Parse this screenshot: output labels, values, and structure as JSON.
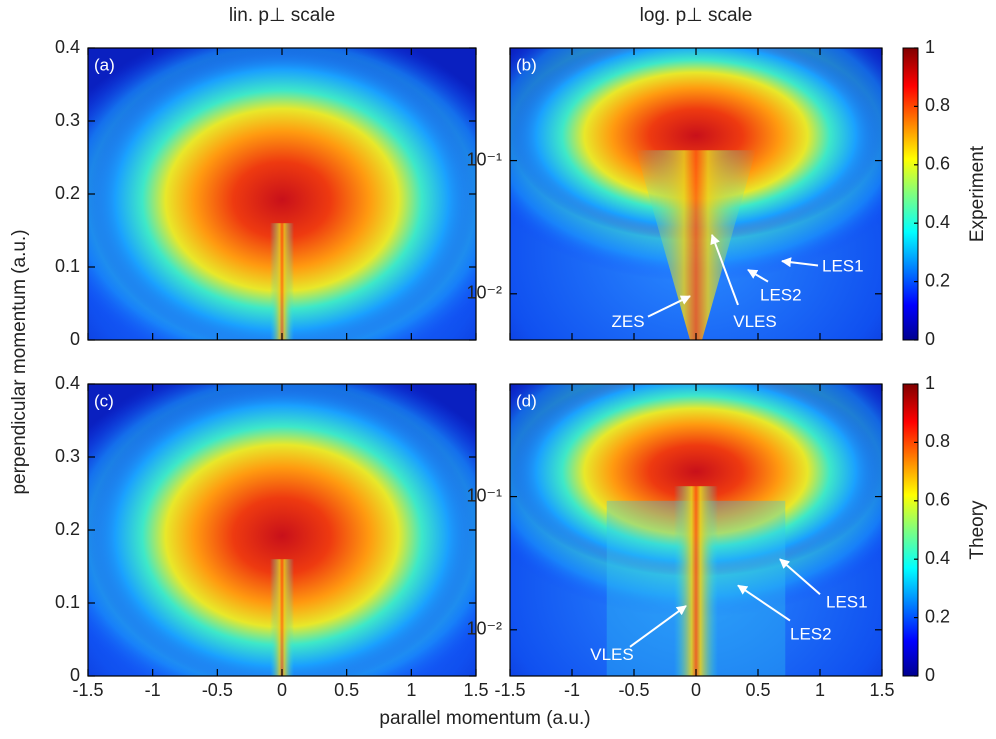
{
  "figure": {
    "ylabel": "perpendicular momentum (a.u.)",
    "xlabel": "parallel momentum (a.u.)"
  },
  "chart_data": [
    {
      "type": "heatmap",
      "title": "lin. p⊥ scale",
      "panel": "(a)",
      "xlim": [
        -1.5,
        1.5
      ],
      "xticks": [
        -1.5,
        -1,
        -0.5,
        0,
        0.5,
        1,
        1.5
      ],
      "ylim": [
        0,
        0.4
      ],
      "yticks": [
        0,
        0.1,
        0.2,
        0.3,
        0.4
      ],
      "yscale": "linear"
    },
    {
      "type": "heatmap",
      "title": "log. p⊥ scale",
      "panel": "(b)",
      "xlim": [
        -1.5,
        1.5
      ],
      "xticks": [
        -1.5,
        -1,
        -0.5,
        0,
        0.5,
        1,
        1.5
      ],
      "ylim": [
        0.0045,
        0.7
      ],
      "yticks": [
        {
          "value": 0.01,
          "label": "10⁻²"
        },
        {
          "value": 0.1,
          "label": "10⁻¹"
        }
      ],
      "yscale": "log",
      "annotations": [
        "LES1",
        "LES2",
        "ZES",
        "VLES"
      ],
      "colorbar": {
        "label": "Experiment",
        "lim": [
          0,
          1
        ],
        "ticks": [
          0,
          0.2,
          0.4,
          0.6,
          0.8,
          1
        ]
      }
    },
    {
      "type": "heatmap",
      "panel": "(c)",
      "xlim": [
        -1.5,
        1.5
      ],
      "xticks": [
        -1.5,
        -1,
        -0.5,
        0,
        0.5,
        1,
        1.5
      ],
      "ylim": [
        0,
        0.4
      ],
      "yticks": [
        0,
        0.1,
        0.2,
        0.3,
        0.4
      ],
      "yscale": "linear"
    },
    {
      "type": "heatmap",
      "panel": "(d)",
      "xlim": [
        -1.5,
        1.5
      ],
      "xticks": [
        -1.5,
        -1,
        -0.5,
        0,
        0.5,
        1,
        1.5
      ],
      "ylim": [
        0.0045,
        0.7
      ],
      "yticks": [
        {
          "value": 0.01,
          "label": "10⁻²"
        },
        {
          "value": 0.1,
          "label": "10⁻¹"
        }
      ],
      "yscale": "log",
      "annotations": [
        "LES1",
        "LES2",
        "VLES"
      ],
      "colorbar": {
        "label": "Theory",
        "lim": [
          0,
          1
        ],
        "ticks": [
          0,
          0.2,
          0.4,
          0.6,
          0.8,
          1
        ]
      }
    }
  ]
}
